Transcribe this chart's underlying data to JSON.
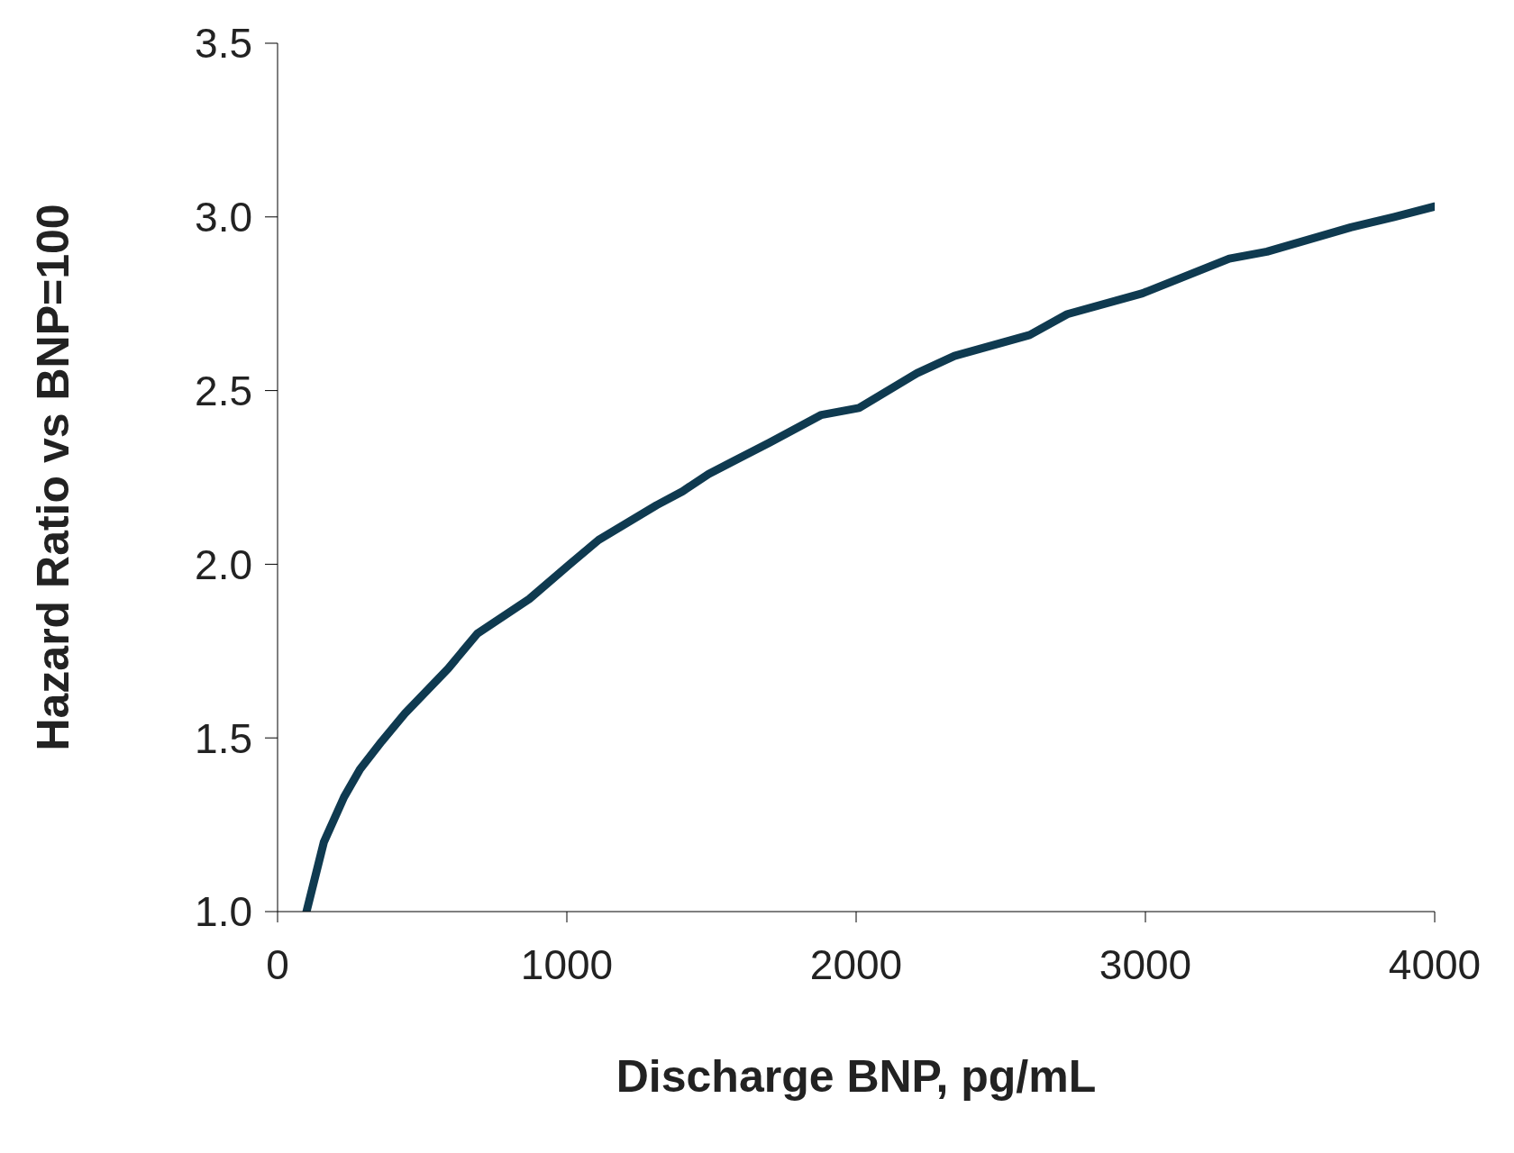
{
  "chart_data": {
    "type": "line",
    "xlabel": "Discharge BNP, pg/mL",
    "ylabel": "Hazard Ratio vs BNP=100",
    "x": [
      100,
      160,
      230,
      285,
      360,
      440,
      590,
      690,
      870,
      1010,
      1110,
      1310,
      1400,
      1490,
      1700,
      1880,
      2010,
      2210,
      2340,
      2600,
      2730,
      2990,
      3290,
      3420,
      3710,
      3860,
      4000
    ],
    "series": [
      {
        "color": "#0f3a50",
        "values": [
          1.0,
          1.2,
          1.33,
          1.41,
          1.49,
          1.57,
          1.7,
          1.8,
          1.9,
          2.0,
          2.07,
          2.17,
          2.21,
          2.26,
          2.35,
          2.43,
          2.45,
          2.55,
          2.6,
          2.66,
          2.72,
          2.78,
          2.88,
          2.9,
          2.97,
          3.0,
          3.03
        ]
      }
    ],
    "xlim": [
      0,
      4000
    ],
    "xticks": [
      0,
      1000,
      2000,
      3000,
      4000
    ],
    "ylim": [
      1,
      3.5
    ],
    "yticks": [
      {
        "value": 1,
        "label": "1.0"
      },
      {
        "value": 1.5,
        "label": "1.5"
      },
      {
        "value": 2,
        "label": "2.0"
      },
      {
        "value": 2.5,
        "label": "2.5"
      },
      {
        "value": 3,
        "label": "3.0"
      },
      {
        "value": 3.5,
        "label": "3.5"
      }
    ],
    "grid": false,
    "legend": false,
    "marker": "none",
    "line_style": "solid"
  }
}
